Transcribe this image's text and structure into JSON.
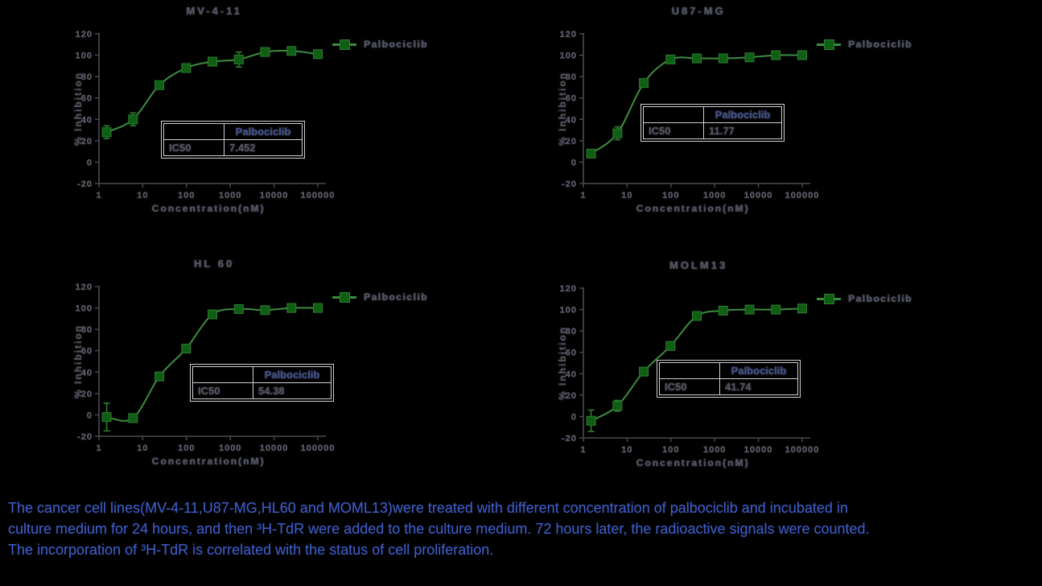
{
  "page": {
    "background": "#000000",
    "colors": {
      "curve_green": "#3c8c40",
      "marker_green": "#0f5e14",
      "error_green": "#2e7d32",
      "axis_gray": "#4a4a52",
      "chart_text": "#55555f",
      "table_border": "#cfcfcf",
      "table_header_text": "#44518a",
      "caption_blue": "#3d5cc5"
    }
  },
  "caption": {
    "lines": [
      "The cancer cell lines(MV-4-11,U87-MG,HL60 and MOML13)were treated with different concentration of palbociclib and incubated in",
      "culture medium for 24 hours, and then ³H-TdR were added to the culture medium. 72 hours later, the radioactive signals were counted.",
      "The incorporation of ³H-TdR is correlated with the status of cell proliferation."
    ]
  },
  "chart_data": [
    {
      "type": "line",
      "title": "MV-4-11",
      "xlabel": "Concentration(nM)",
      "ylabel": "% Inhibition",
      "xscale": "log",
      "xlim": [
        1,
        100000
      ],
      "ylim": [
        -20,
        120
      ],
      "xticks": [
        1,
        10,
        100,
        1000,
        10000,
        100000
      ],
      "yticks": [
        -20,
        0,
        20,
        40,
        60,
        80,
        100,
        120
      ],
      "legend": "Palbociclib",
      "legend_position": "upper-right-outside",
      "series": [
        {
          "name": "Palbociclib",
          "x": [
            1.5,
            6,
            24,
            98,
            391,
            1563,
            6250,
            25000,
            100000
          ],
          "y": [
            28,
            40,
            72,
            88,
            94,
            96,
            103,
            104,
            101
          ],
          "err": [
            6,
            6,
            0,
            0,
            0,
            7,
            0,
            0,
            0
          ]
        }
      ],
      "table": {
        "col_header": "Palbociclib",
        "row_label": "IC50",
        "value": "7.452"
      }
    },
    {
      "type": "line",
      "title": "U87-MG",
      "xlabel": "Concentration(nM)",
      "ylabel": "% Inhibition",
      "xscale": "log",
      "xlim": [
        1,
        100000
      ],
      "ylim": [
        -20,
        120
      ],
      "xticks": [
        1,
        10,
        100,
        1000,
        10000,
        100000
      ],
      "yticks": [
        -20,
        0,
        20,
        40,
        60,
        80,
        100,
        120
      ],
      "legend": "Palbociclib",
      "legend_position": "upper-right-outside",
      "series": [
        {
          "name": "Palbociclib",
          "x": [
            1.5,
            6,
            24,
            98,
            391,
            1563,
            6250,
            25000,
            100000
          ],
          "y": [
            8,
            27,
            74,
            96,
            97,
            97,
            98,
            100,
            100
          ],
          "err": [
            0,
            6,
            0,
            0,
            0,
            0,
            0,
            0,
            0
          ]
        }
      ],
      "table": {
        "col_header": "Palbociclib",
        "row_label": "IC50",
        "value": "11.77"
      }
    },
    {
      "type": "line",
      "title": "HL 60",
      "xlabel": "Concentration(nM)",
      "ylabel": "% Inhibition",
      "xscale": "log",
      "xlim": [
        1,
        100000
      ],
      "ylim": [
        -20,
        120
      ],
      "xticks": [
        1,
        10,
        100,
        1000,
        10000,
        100000
      ],
      "yticks": [
        -20,
        0,
        20,
        40,
        60,
        80,
        100,
        120
      ],
      "legend": "Palbociclib",
      "legend_position": "upper-right-outside",
      "series": [
        {
          "name": "Palbociclib",
          "x": [
            1.5,
            6,
            24,
            98,
            391,
            1563,
            6250,
            25000,
            100000
          ],
          "y": [
            -2,
            -3,
            36,
            62,
            94,
            99,
            98,
            100,
            100
          ],
          "err": [
            13,
            0,
            0,
            0,
            0,
            0,
            0,
            0,
            0
          ]
        }
      ],
      "table": {
        "col_header": "Palbociclib",
        "row_label": "IC50",
        "value": "54.38"
      }
    },
    {
      "type": "line",
      "title": "MOLM13",
      "xlabel": "Concentration(nM)",
      "ylabel": "% Inhibition",
      "xscale": "log",
      "xlim": [
        1,
        100000
      ],
      "ylim": [
        -20,
        120
      ],
      "xticks": [
        1,
        10,
        100,
        1000,
        10000,
        100000
      ],
      "yticks": [
        -20,
        0,
        20,
        40,
        60,
        80,
        100,
        120
      ],
      "legend": "Palbociclib",
      "legend_position": "upper-right-outside",
      "series": [
        {
          "name": "Palbociclib",
          "x": [
            1.5,
            6,
            24,
            98,
            391,
            1563,
            6250,
            25000,
            100000
          ],
          "y": [
            -4,
            10,
            42,
            66,
            94,
            99,
            100,
            100,
            101
          ],
          "err": [
            10,
            5,
            0,
            0,
            0,
            0,
            0,
            0,
            0
          ]
        }
      ],
      "table": {
        "col_header": "Palbociclib",
        "row_label": "IC50",
        "value": "41.74"
      }
    }
  ]
}
